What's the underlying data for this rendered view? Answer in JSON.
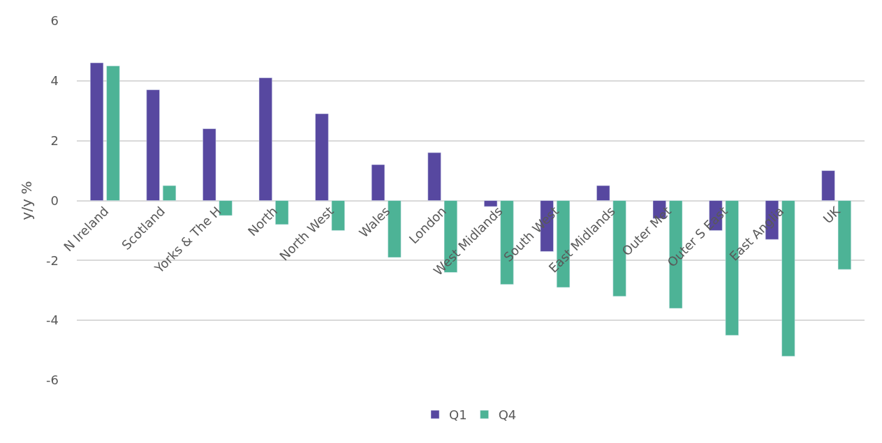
{
  "chart_data": {
    "type": "bar",
    "ylabel": "y/y %",
    "categories": [
      "N Ireland",
      "Scotland",
      "Yorks & The H",
      "North",
      "North West",
      "Wales",
      "London",
      "West Midlands",
      "South West",
      "East Midlands",
      "Outer Met",
      "Outer S East",
      "East Anglia",
      "UK"
    ],
    "series": [
      {
        "name": "Q1",
        "color": "#5748a0",
        "values": [
          4.6,
          3.7,
          2.4,
          4.1,
          2.9,
          1.2,
          1.6,
          -0.2,
          -1.7,
          0.5,
          -0.6,
          -1.0,
          -1.3,
          1.0
        ]
      },
      {
        "name": "Q4",
        "color": "#4db396",
        "values": [
          4.5,
          0.5,
          -0.5,
          -0.8,
          -1.0,
          -1.9,
          -2.4,
          -2.8,
          -2.9,
          -3.2,
          -3.6,
          -4.5,
          -5.2,
          -2.3
        ]
      }
    ],
    "ylim": [
      -6,
      6
    ],
    "yticks": [
      -6,
      -4,
      -2,
      0,
      2,
      4,
      6
    ],
    "grid": "y",
    "legend": "bottom"
  }
}
